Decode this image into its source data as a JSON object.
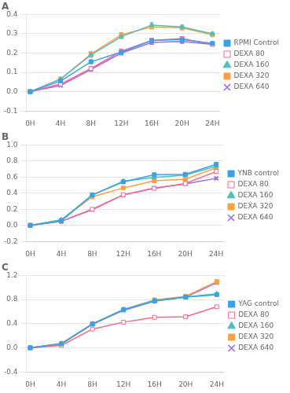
{
  "chart_data": [
    {
      "type": "line",
      "title": "A",
      "x": [
        0,
        4,
        8,
        12,
        16,
        20,
        24
      ],
      "xlim": [
        -0.5,
        25
      ],
      "xticks": [
        {
          "value": 0,
          "label": "0H"
        },
        {
          "value": 4,
          "label": "4H"
        },
        {
          "value": 8,
          "label": "8H"
        },
        {
          "value": 12,
          "label": "12H"
        },
        {
          "value": 16,
          "label": "16H"
        },
        {
          "value": 20,
          "label": "20H"
        },
        {
          "value": 24,
          "label": "24H"
        }
      ],
      "ylim": [
        -0.1,
        0.4
      ],
      "yticks": [
        -0.1,
        {
          "value": 0,
          "label": "0.0"
        },
        0.1,
        0.2,
        0.3,
        0.4
      ],
      "grid": "y",
      "legend": "right",
      "series": [
        {
          "name": "RPMI Control",
          "marker": "square",
          "values": [
            0.0,
            0.055,
            0.155,
            0.205,
            0.265,
            0.27,
            0.25
          ],
          "errors": [
            0.003,
            0.006,
            0.01,
            0.01,
            0.01,
            0.01,
            0.008
          ]
        },
        {
          "name": "DEXA 80",
          "marker": "open_square",
          "values": [
            0.0,
            0.04,
            0.12,
            0.21,
            0.265,
            0.275,
            0.245
          ],
          "errors": [
            0.003,
            0.005,
            0.01,
            0.01,
            0.01,
            0.01,
            0.008
          ]
        },
        {
          "name": "DEXA 160",
          "marker": "triangle",
          "values": [
            0.0,
            0.065,
            0.19,
            0.285,
            0.345,
            0.335,
            0.3
          ],
          "errors": [
            0.003,
            0.005,
            0.012,
            0.01,
            0.012,
            0.01,
            0.008
          ]
        },
        {
          "name": "DEXA 320",
          "marker": "square",
          "values": [
            0.0,
            0.065,
            0.195,
            0.295,
            0.335,
            0.33,
            0.295
          ],
          "errors": [
            0.003,
            0.005,
            0.012,
            0.01,
            0.01,
            0.01,
            0.008
          ]
        },
        {
          "name": "DEXA 640",
          "marker": "x",
          "values": [
            0.0,
            0.032,
            0.115,
            0.2,
            0.255,
            0.26,
            0.245
          ],
          "errors": [
            0.002,
            0.004,
            0.01,
            0.01,
            0.01,
            0.01,
            0.007
          ]
        }
      ]
    },
    {
      "type": "line",
      "title": "B",
      "x": [
        0,
        4,
        8,
        12,
        16,
        20,
        24
      ],
      "xlim": [
        -0.5,
        25
      ],
      "xticks": [
        {
          "value": 0,
          "label": "0H"
        },
        {
          "value": 4,
          "label": "4H"
        },
        {
          "value": 8,
          "label": "8H"
        },
        {
          "value": 12,
          "label": "12H"
        },
        {
          "value": 16,
          "label": "16H"
        },
        {
          "value": 20,
          "label": "20H"
        },
        {
          "value": 24,
          "label": "24H"
        }
      ],
      "ylim": [
        -0.2,
        1.0
      ],
      "yticks": [
        -0.2,
        {
          "value": 0,
          "label": "0.0"
        },
        0.2,
        0.4,
        0.6,
        0.8,
        {
          "value": 1.0,
          "label": "1.0"
        }
      ],
      "grid": "y",
      "legend": "right",
      "series": [
        {
          "name": "YNB control",
          "marker": "square",
          "values": [
            0.0,
            0.055,
            0.38,
            0.54,
            0.63,
            0.635,
            0.76
          ],
          "errors": [
            0.003,
            0.006,
            0.015,
            0.015,
            0.015,
            0.015,
            0.015
          ]
        },
        {
          "name": "DEXA 80",
          "marker": "open_square",
          "values": [
            0.0,
            0.05,
            0.2,
            0.38,
            0.46,
            0.52,
            0.67
          ],
          "errors": [
            0.003,
            0.005,
            0.015,
            0.015,
            0.015,
            0.015,
            0.015
          ]
        },
        {
          "name": "DEXA 160",
          "marker": "triangle",
          "values": [
            0.0,
            0.07,
            0.375,
            0.55,
            0.595,
            0.625,
            0.735
          ],
          "errors": [
            0.003,
            0.006,
            0.015,
            0.015,
            0.015,
            0.015,
            0.015
          ]
        },
        {
          "name": "DEXA 320",
          "marker": "square",
          "values": [
            0.0,
            0.065,
            0.355,
            0.465,
            0.555,
            0.575,
            0.715
          ],
          "errors": [
            0.003,
            0.006,
            0.015,
            0.015,
            0.015,
            0.015,
            0.015
          ]
        },
        {
          "name": "DEXA 640",
          "marker": "x",
          "values": [
            0.0,
            0.05,
            0.195,
            0.38,
            0.465,
            0.515,
            0.585
          ],
          "errors": [
            0.002,
            0.005,
            0.012,
            0.015,
            0.015,
            0.012,
            0.012
          ]
        }
      ]
    },
    {
      "type": "line",
      "title": "C",
      "x": [
        0,
        4,
        8,
        12,
        16,
        20,
        24
      ],
      "xlim": [
        -0.5,
        25
      ],
      "xticks": [
        {
          "value": 0,
          "label": "0H"
        },
        {
          "value": 4,
          "label": "4H"
        },
        {
          "value": 8,
          "label": "8H"
        },
        {
          "value": 12,
          "label": "12H"
        },
        {
          "value": 16,
          "label": "16H"
        },
        {
          "value": 20,
          "label": "20H"
        },
        {
          "value": 24,
          "label": "24H"
        }
      ],
      "ylim": [
        -0.4,
        1.2
      ],
      "yticks": [
        -0.4,
        {
          "value": 0,
          "label": "0.0"
        },
        0.4,
        0.8,
        1.2
      ],
      "grid": "y",
      "legend": "right",
      "series": [
        {
          "name": "YAG control",
          "marker": "square",
          "values": [
            0.0,
            0.065,
            0.395,
            0.63,
            0.775,
            0.84,
            0.88
          ],
          "errors": [
            0.003,
            0.006,
            0.015,
            0.015,
            0.015,
            0.015,
            0.02
          ]
        },
        {
          "name": "DEXA 80",
          "marker": "open_square",
          "values": [
            0.0,
            0.04,
            0.31,
            0.425,
            0.505,
            0.515,
            0.68
          ],
          "errors": [
            0.003,
            0.005,
            0.015,
            0.015,
            0.015,
            0.015,
            0.015
          ]
        },
        {
          "name": "DEXA 160",
          "marker": "triangle",
          "values": [
            0.0,
            0.068,
            0.395,
            0.635,
            0.785,
            0.845,
            0.895
          ],
          "errors": [
            0.003,
            0.006,
            0.015,
            0.015,
            0.015,
            0.015,
            0.02
          ]
        },
        {
          "name": "DEXA 320",
          "marker": "square",
          "values": [
            0.0,
            0.075,
            0.4,
            0.635,
            0.795,
            0.855,
            1.1
          ],
          "errors": [
            0.003,
            0.006,
            0.015,
            0.015,
            0.015,
            0.015,
            0.02
          ]
        },
        {
          "name": "DEXA 640",
          "marker": "x",
          "values": [
            0.0,
            0.065,
            0.39,
            0.62,
            0.775,
            0.84,
            1.08
          ],
          "errors": [
            0.003,
            0.006,
            0.015,
            0.015,
            0.015,
            0.015,
            0.02
          ]
        }
      ]
    }
  ]
}
